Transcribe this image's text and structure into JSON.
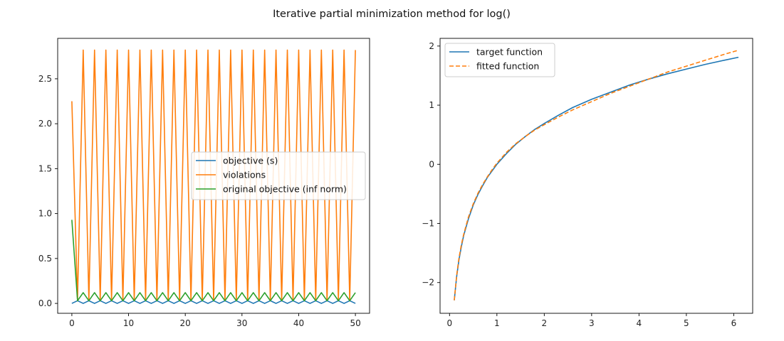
{
  "figure": {
    "title": "Iterative partial minimization method for log()"
  },
  "chart_data": [
    {
      "type": "line",
      "xlim": [
        -2.5,
        52.5
      ],
      "ylim": [
        -0.11,
        2.95
      ],
      "xticks": [
        0,
        10,
        20,
        30,
        40,
        50
      ],
      "xtick_labels": [
        "0",
        "10",
        "20",
        "30",
        "40",
        "50"
      ],
      "yticks": [
        0.0,
        0.5,
        1.0,
        1.5,
        2.0,
        2.5
      ],
      "ytick_labels": [
        "0.0",
        "0.5",
        "1.0",
        "1.5",
        "2.0",
        "2.5"
      ],
      "grid": false,
      "legend": "center-right",
      "x": [
        0,
        1,
        2,
        3,
        4,
        5,
        6,
        7,
        8,
        9,
        10,
        11,
        12,
        13,
        14,
        15,
        16,
        17,
        18,
        19,
        20,
        21,
        22,
        23,
        24,
        25,
        26,
        27,
        28,
        29,
        30,
        31,
        32,
        33,
        34,
        35,
        36,
        37,
        38,
        39,
        40,
        41,
        42,
        43,
        44,
        45,
        46,
        47,
        48,
        49,
        50
      ],
      "series": [
        {
          "name": "objective (s)",
          "color": "#1f77b4",
          "dash": "",
          "values": [
            0.0,
            0.03,
            0.0,
            0.03,
            0.0,
            0.03,
            0.0,
            0.03,
            0.0,
            0.03,
            0.0,
            0.03,
            0.0,
            0.03,
            0.0,
            0.03,
            0.0,
            0.03,
            0.0,
            0.03,
            0.0,
            0.03,
            0.0,
            0.03,
            0.0,
            0.03,
            0.0,
            0.03,
            0.0,
            0.03,
            0.0,
            0.03,
            0.0,
            0.03,
            0.0,
            0.03,
            0.0,
            0.03,
            0.0,
            0.03,
            0.0,
            0.03,
            0.0,
            0.03,
            0.0,
            0.03,
            0.0,
            0.03,
            0.0,
            0.03,
            0.0
          ]
        },
        {
          "name": "violations",
          "color": "#ff7f0e",
          "dash": "",
          "values": [
            2.25,
            0.03,
            2.82,
            0.03,
            2.82,
            0.03,
            2.82,
            0.03,
            2.82,
            0.03,
            2.82,
            0.03,
            2.82,
            0.03,
            2.82,
            0.03,
            2.82,
            0.03,
            2.82,
            0.03,
            2.82,
            0.03,
            2.82,
            0.03,
            2.82,
            0.03,
            2.82,
            0.03,
            2.82,
            0.03,
            2.82,
            0.03,
            2.82,
            0.03,
            2.82,
            0.03,
            2.82,
            0.03,
            2.82,
            0.03,
            2.82,
            0.03,
            2.82,
            0.03,
            2.82,
            0.03,
            2.82,
            0.03,
            2.82,
            0.03,
            2.82
          ]
        },
        {
          "name": "original objective (inf norm)",
          "color": "#2ca02c",
          "dash": "",
          "values": [
            0.93,
            0.03,
            0.12,
            0.03,
            0.12,
            0.03,
            0.12,
            0.03,
            0.12,
            0.03,
            0.12,
            0.03,
            0.12,
            0.03,
            0.12,
            0.03,
            0.12,
            0.03,
            0.12,
            0.03,
            0.12,
            0.03,
            0.12,
            0.03,
            0.12,
            0.03,
            0.12,
            0.03,
            0.12,
            0.03,
            0.12,
            0.03,
            0.12,
            0.03,
            0.12,
            0.03,
            0.12,
            0.03,
            0.12,
            0.03,
            0.12,
            0.03,
            0.12,
            0.03,
            0.12,
            0.03,
            0.12,
            0.03,
            0.12,
            0.03,
            0.12
          ]
        }
      ]
    },
    {
      "type": "line",
      "xlim": [
        -0.2,
        6.4
      ],
      "ylim": [
        -2.52,
        2.13
      ],
      "xticks": [
        0,
        1,
        2,
        3,
        4,
        5,
        6
      ],
      "xtick_labels": [
        "0",
        "1",
        "2",
        "3",
        "4",
        "5",
        "6"
      ],
      "yticks": [
        -2,
        -1,
        0,
        1,
        2
      ],
      "ytick_labels": [
        "−2",
        "−1",
        "0",
        "1",
        "2"
      ],
      "grid": false,
      "legend": "top-left",
      "x": [
        0.1,
        0.15,
        0.2,
        0.25,
        0.3,
        0.4,
        0.5,
        0.6,
        0.7,
        0.8,
        0.9,
        1.0,
        1.2,
        1.4,
        1.6,
        1.8,
        2.0,
        2.3,
        2.6,
        3.0,
        3.4,
        3.8,
        4.2,
        4.6,
        5.0,
        5.4,
        5.8,
        6.1
      ],
      "series": [
        {
          "name": "target function",
          "color": "#1f77b4",
          "dash": "",
          "values": [
            -2.3,
            -1.9,
            -1.61,
            -1.39,
            -1.2,
            -0.92,
            -0.69,
            -0.51,
            -0.36,
            -0.22,
            -0.11,
            0.0,
            0.18,
            0.34,
            0.47,
            0.59,
            0.69,
            0.83,
            0.96,
            1.1,
            1.22,
            1.34,
            1.44,
            1.53,
            1.61,
            1.69,
            1.76,
            1.81
          ]
        },
        {
          "name": "fitted function",
          "color": "#ff7f0e",
          "dash": "6,3",
          "values": [
            -2.3,
            -1.88,
            -1.58,
            -1.36,
            -1.18,
            -0.89,
            -0.67,
            -0.49,
            -0.34,
            -0.21,
            -0.09,
            0.02,
            0.2,
            0.35,
            0.47,
            0.58,
            0.67,
            0.8,
            0.92,
            1.06,
            1.2,
            1.32,
            1.44,
            1.56,
            1.66,
            1.76,
            1.86,
            1.93
          ]
        }
      ]
    }
  ]
}
